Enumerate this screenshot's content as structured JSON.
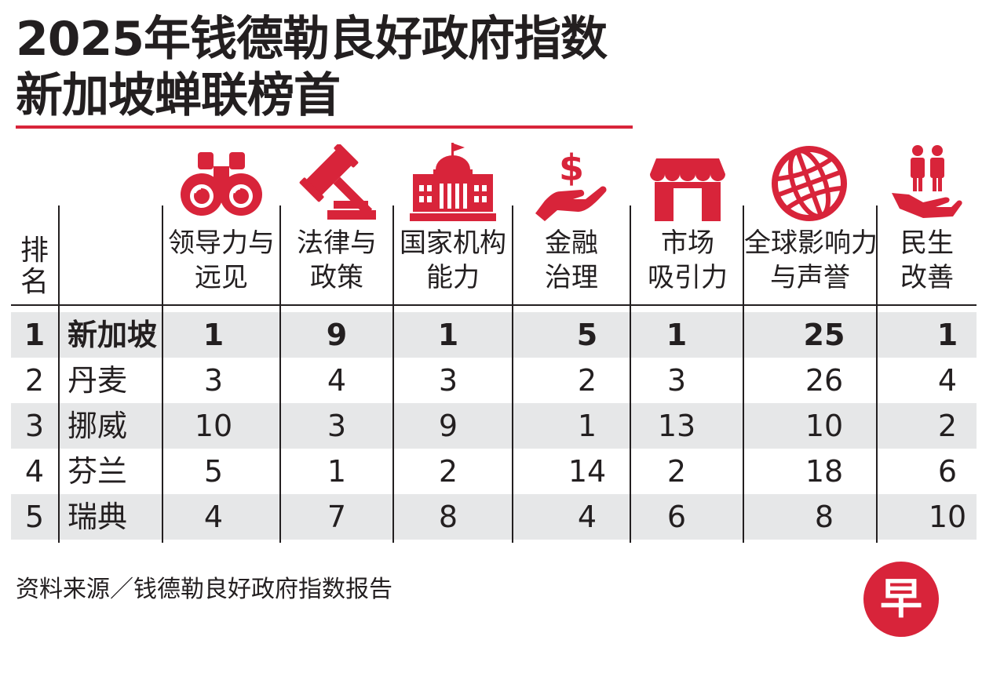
{
  "title": {
    "line1": "2025年钱德勒良好政府指数",
    "line2": "新加坡蝉联榜首"
  },
  "colors": {
    "accent": "#d8243a",
    "text": "#231f20",
    "shade": "#e6e7e8"
  },
  "chart_data": {
    "type": "table",
    "rank_header": [
      "排",
      "名"
    ],
    "columns": [
      {
        "label": [
          "领导力与",
          "远见"
        ],
        "icon": "binoculars-icon"
      },
      {
        "label": [
          "法律与",
          "政策"
        ],
        "icon": "gavel-icon"
      },
      {
        "label": [
          "国家机构",
          "能力"
        ],
        "icon": "government-building-icon"
      },
      {
        "label": [
          "金融",
          "治理"
        ],
        "icon": "dollar-hand-icon"
      },
      {
        "label": [
          "市场",
          "吸引力"
        ],
        "icon": "storefront-icon"
      },
      {
        "label": [
          "全球影响力",
          "与声誉"
        ],
        "icon": "globe-icon"
      },
      {
        "label": [
          "民生",
          "改善"
        ],
        "icon": "people-hand-icon"
      }
    ],
    "rows": [
      {
        "rank": "1",
        "country": "新加坡",
        "values": [
          "1",
          "9",
          "1",
          "5",
          "1",
          "25",
          "1"
        ],
        "highlight": true
      },
      {
        "rank": "2",
        "country": "丹麦",
        "values": [
          "3",
          "4",
          "3",
          "2",
          "3",
          "26",
          "4"
        ]
      },
      {
        "rank": "3",
        "country": "挪威",
        "values": [
          "10",
          "3",
          "9",
          "1",
          "13",
          "10",
          "2"
        ]
      },
      {
        "rank": "4",
        "country": "芬兰",
        "values": [
          "5",
          "1",
          "2",
          "14",
          "2",
          "18",
          "6"
        ]
      },
      {
        "rank": "5",
        "country": "瑞典",
        "values": [
          "4",
          "7",
          "8",
          "4",
          "6",
          "8",
          "10"
        ]
      }
    ]
  },
  "footnote": "资料来源／钱德勒良好政府指数报告",
  "logo": {
    "glyph": "早",
    "color": "#d8243a"
  }
}
